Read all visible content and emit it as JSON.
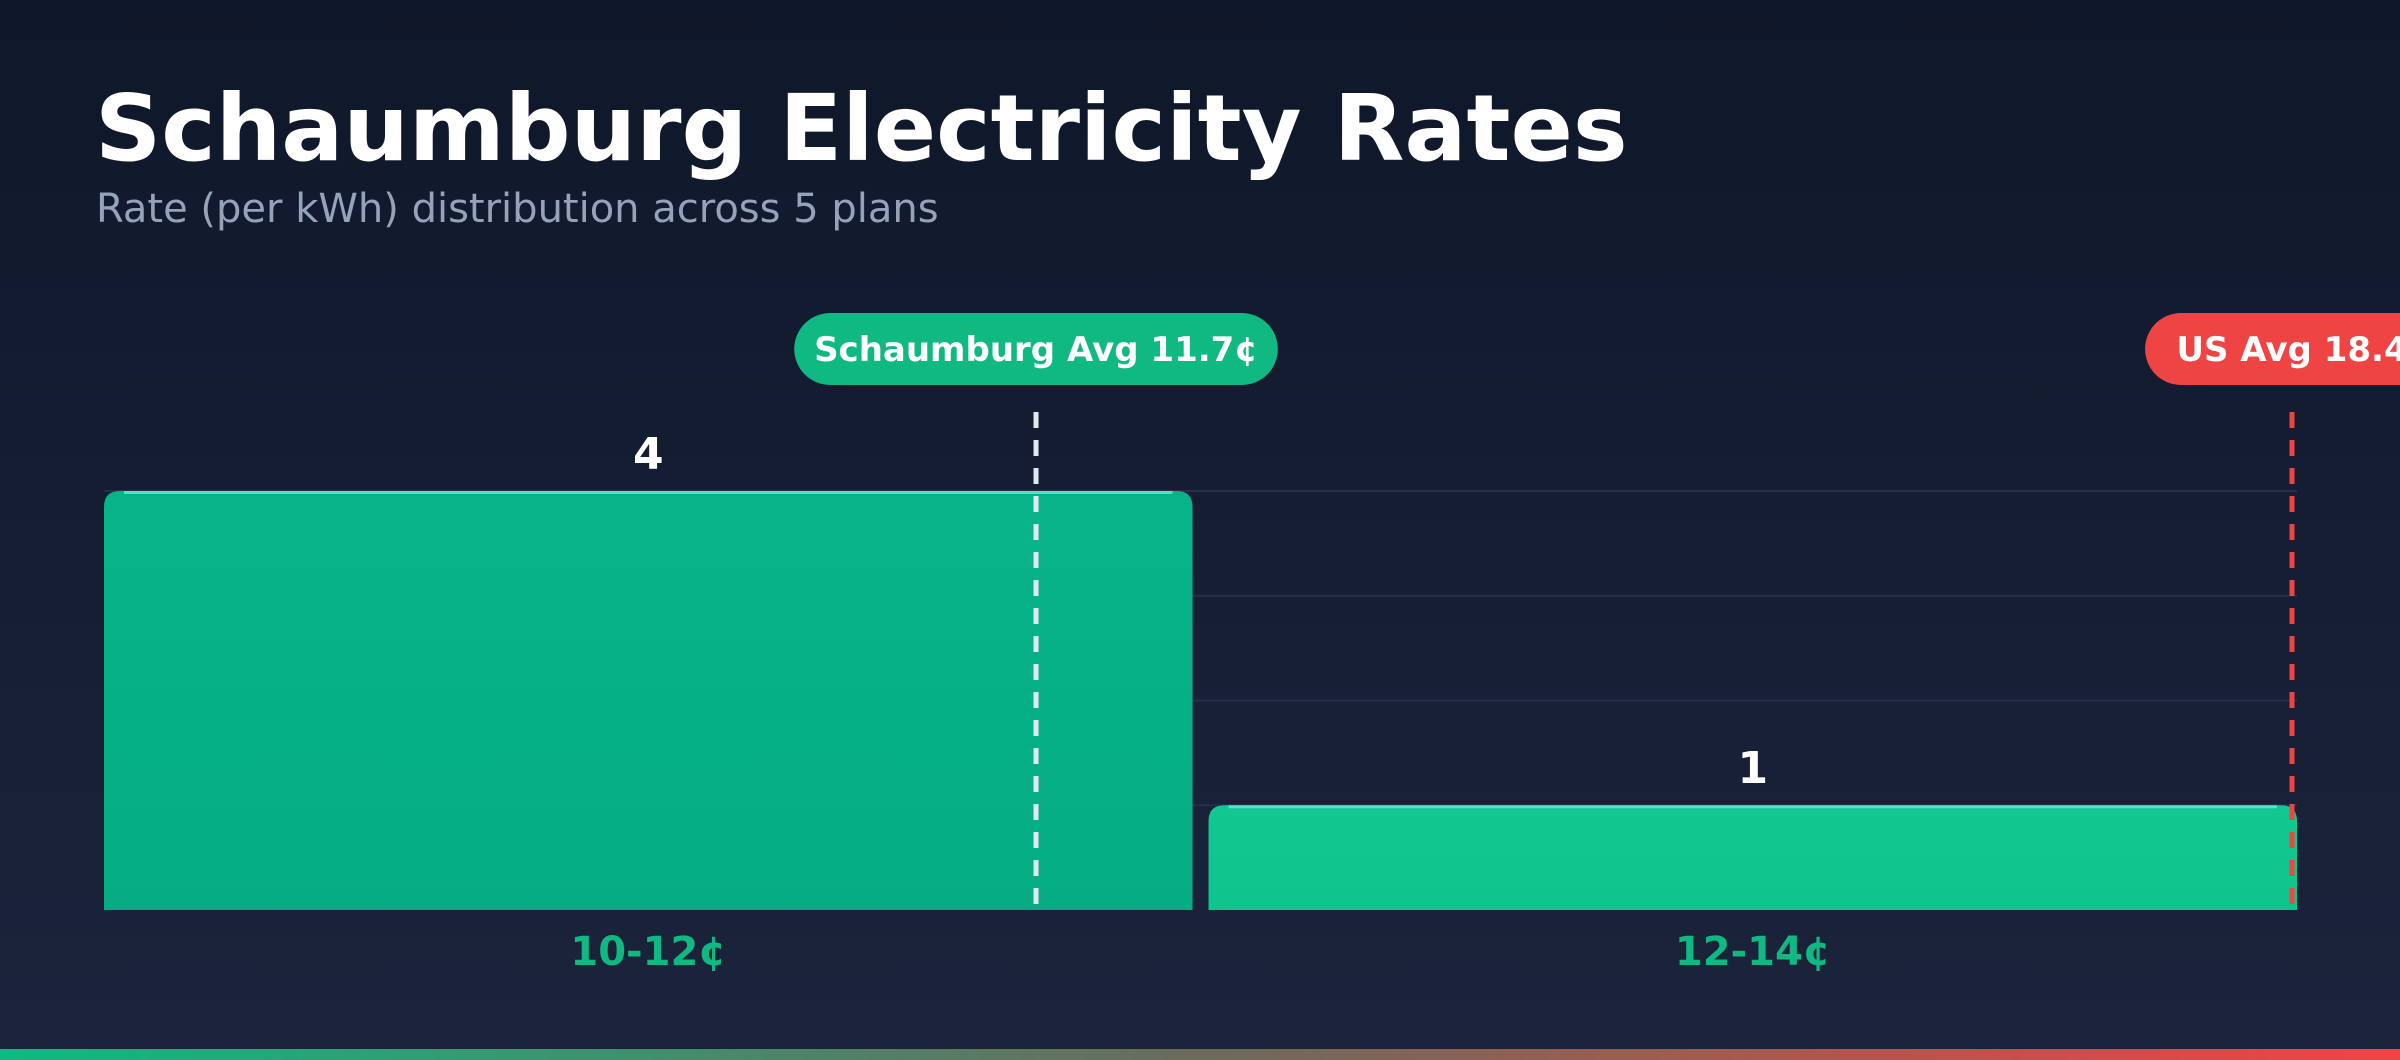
{
  "title": "Schaumburg Electricity Rates",
  "subtitle": "Rate (per kWh) distribution across 5 plans",
  "chart_data": {
    "type": "bar",
    "title": "Schaumburg Electricity Rates",
    "subtitle": "Rate (per kWh) distribution across 5 plans",
    "categories": [
      "10-12¢",
      "12-14¢"
    ],
    "bins": [
      [
        10,
        12
      ],
      [
        12,
        14
      ]
    ],
    "values": [
      4,
      1
    ],
    "ylim": [
      0,
      4.2
    ],
    "reference_lines": [
      {
        "label": "Schaumburg Avg 11.7¢",
        "value": 11.7,
        "color": "#10b981",
        "line_color": "#e2e8f0"
      },
      {
        "label": "US Avg 18.4",
        "value": 14.0,
        "color": "#ef4444",
        "line_color": "#ef4444"
      }
    ],
    "colors": {
      "bar_1": "#07b489",
      "bar_2": "#12c790",
      "category_label": "#10b981",
      "value_label": "#ffffff"
    },
    "grid": true
  }
}
